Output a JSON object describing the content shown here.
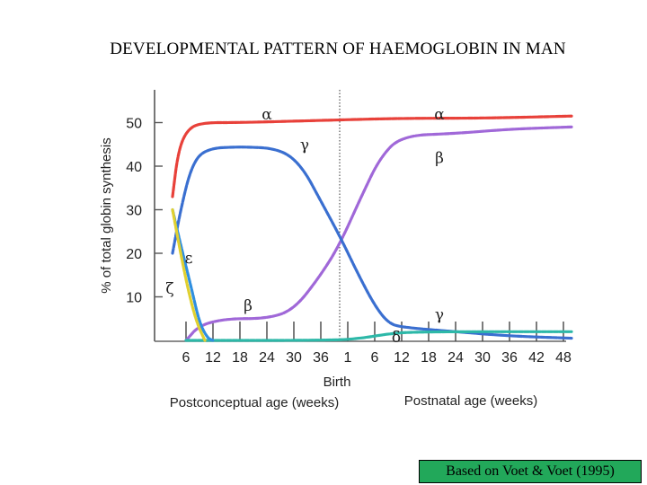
{
  "slide": {
    "title": "DEVELOPMENTAL PATTERN OF HAEMOGLOBIN IN MAN",
    "caption": "Based on Voet & Voet (1995)"
  },
  "chart_data": {
    "type": "line",
    "title": "DEVELOPMENTAL PATTERN OF HAEMOGLOBIN IN MAN",
    "ylabel": "% of total globin synthesis",
    "ylim": [
      0,
      55
    ],
    "y_ticks": [
      10,
      20,
      30,
      40,
      50
    ],
    "x_tick_labels": [
      "6",
      "12",
      "18",
      "24",
      "30",
      "36",
      "1",
      "6",
      "12",
      "18",
      "24",
      "30",
      "36",
      "42",
      "48"
    ],
    "x_index_range": [
      -0.5,
      14.3
    ],
    "birth_label": "Birth",
    "birth_index": 5.7,
    "x_group_labels": [
      "Postconceptual age (weeks)",
      "Postnatal age (weeks)"
    ],
    "series": [
      {
        "name": "α",
        "color": "#e8413a",
        "label_points": [
          [
            3.0,
            52.0
          ],
          [
            9.4,
            52.0
          ]
        ],
        "points": [
          [
            -0.5,
            33
          ],
          [
            -0.3,
            43
          ],
          [
            0.0,
            48
          ],
          [
            0.5,
            50
          ],
          [
            2.0,
            50
          ],
          [
            5.0,
            50.5
          ],
          [
            8.0,
            51
          ],
          [
            11.0,
            51
          ],
          [
            14.3,
            51.5
          ]
        ]
      },
      {
        "name": "β",
        "color": "#a068d8",
        "label_points": [
          [
            2.3,
            8.0
          ],
          [
            9.4,
            42.0
          ]
        ],
        "points": [
          [
            0.0,
            0
          ],
          [
            0.5,
            3.5
          ],
          [
            1.5,
            5
          ],
          [
            3.0,
            5
          ],
          [
            4.0,
            7
          ],
          [
            5.0,
            15
          ],
          [
            5.7,
            22
          ],
          [
            6.5,
            33
          ],
          [
            7.2,
            42
          ],
          [
            8.0,
            47
          ],
          [
            10.0,
            47.5
          ],
          [
            12.0,
            48.5
          ],
          [
            14.3,
            49
          ]
        ]
      },
      {
        "name": "γ",
        "color": "#3a6fd0",
        "label_points": [
          [
            4.4,
            45.0
          ],
          [
            9.4,
            6.0
          ]
        ],
        "points": [
          [
            -0.5,
            20
          ],
          [
            -0.2,
            30
          ],
          [
            0.2,
            40
          ],
          [
            0.7,
            44
          ],
          [
            2.0,
            44.5
          ],
          [
            3.5,
            44
          ],
          [
            4.3,
            40
          ],
          [
            5.0,
            32
          ],
          [
            5.7,
            24
          ],
          [
            6.4,
            15
          ],
          [
            7.0,
            8
          ],
          [
            7.5,
            4
          ],
          [
            8.0,
            3
          ],
          [
            10.0,
            2
          ],
          [
            12.0,
            1
          ],
          [
            14.3,
            0.5
          ]
        ]
      },
      {
        "name": "δ",
        "color": "#2db8a8",
        "label_points": [
          [
            7.8,
            0.8
          ]
        ],
        "points": [
          [
            0.0,
            0
          ],
          [
            5.5,
            0
          ],
          [
            6.5,
            0.5
          ],
          [
            7.5,
            1.5
          ],
          [
            8.5,
            2
          ],
          [
            14.3,
            2
          ]
        ]
      },
      {
        "name": "ε",
        "color": "#2f8fe0",
        "label_points": [
          [
            0.1,
            19.0
          ]
        ],
        "points": [
          [
            -0.5,
            30
          ],
          [
            -0.2,
            22
          ],
          [
            0.2,
            12
          ],
          [
            0.5,
            4
          ],
          [
            0.8,
            0.5
          ],
          [
            1.0,
            0
          ]
        ]
      },
      {
        "name": "ζ",
        "color": "#e0d030",
        "label_points": [
          [
            -0.6,
            12.0
          ]
        ],
        "points": [
          [
            -0.5,
            30
          ],
          [
            -0.2,
            20
          ],
          [
            0.1,
            11
          ],
          [
            0.4,
            4
          ],
          [
            0.7,
            0
          ]
        ]
      }
    ]
  }
}
